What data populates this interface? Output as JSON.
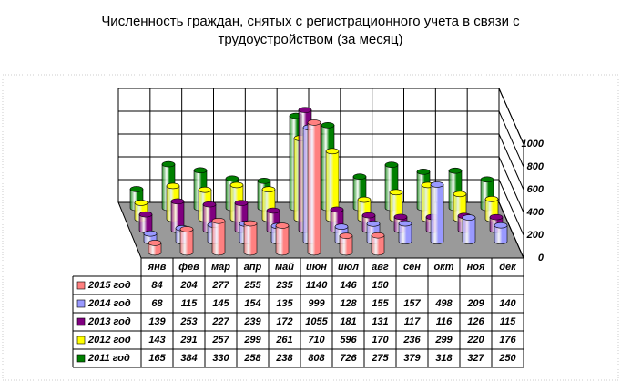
{
  "chart_data": {
    "type": "bar3d",
    "title": "Численность граждан, снятых с регистрационного учета в связи с трудоустройством (за месяц)",
    "categories": [
      "янв",
      "фев",
      "мар",
      "апр",
      "май",
      "июн",
      "июл",
      "авг",
      "сен",
      "окт",
      "ноя",
      "дек"
    ],
    "series": [
      {
        "name": "2015 год",
        "color": "#ff8080",
        "values": [
          84,
          204,
          277,
          255,
          235,
          1140,
          146,
          150,
          null,
          null,
          null,
          null
        ]
      },
      {
        "name": "2014 год",
        "color": "#9999ff",
        "values": [
          68,
          115,
          145,
          154,
          135,
          999,
          128,
          155,
          157,
          498,
          209,
          140
        ]
      },
      {
        "name": "2013 год",
        "color": "#800080",
        "values": [
          139,
          253,
          227,
          239,
          172,
          1055,
          181,
          131,
          117,
          116,
          126,
          115
        ]
      },
      {
        "name": "2012 год",
        "color": "#ffff00",
        "values": [
          143,
          291,
          257,
          299,
          261,
          710,
          596,
          170,
          236,
          299,
          220,
          176
        ]
      },
      {
        "name": "2011 год",
        "color": "#008000",
        "values": [
          165,
          384,
          330,
          258,
          238,
          808,
          726,
          275,
          379,
          318,
          327,
          250
        ]
      }
    ],
    "ylim": [
      0,
      1000
    ],
    "yticks": [
      0,
      200,
      400,
      600,
      800,
      1000
    ],
    "grid": true
  }
}
